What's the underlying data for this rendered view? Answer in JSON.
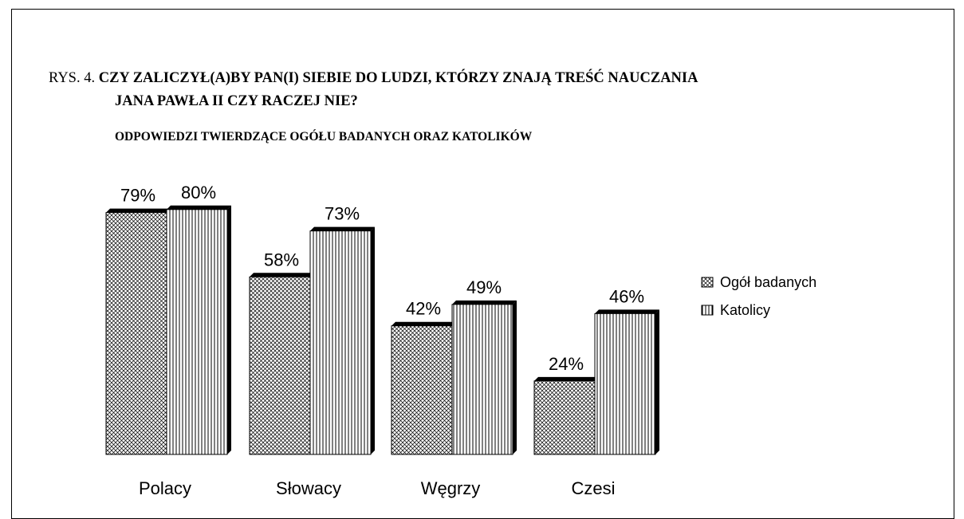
{
  "title": {
    "prefix": "RYS. 4.",
    "line1": "CZY ZALICZYŁ(A)BY PAN(I) SIEBIE DO LUDZI, KTÓRZY ZNAJĄ TREŚĆ NAUCZANIA",
    "line2": "JANA PAWŁA II CZY RACZEJ NIE?"
  },
  "subtitle": "ODPOWIEDZI TWIERDZĄCE OGÓŁU BADANYCH ORAZ KATOLIKÓW",
  "chart_data": {
    "type": "bar",
    "categories": [
      "Polacy",
      "Słowacy",
      "Węgrzy",
      "Czesi"
    ],
    "series": [
      {
        "name": "Ogół badanych",
        "values": [
          79,
          58,
          42,
          24
        ],
        "labels": [
          "79%",
          "58%",
          "42%",
          "24%"
        ],
        "pattern": "crosshatch"
      },
      {
        "name": "Katolicy",
        "values": [
          80,
          73,
          49,
          46
        ],
        "labels": [
          "80%",
          "73%",
          "49%",
          "46%"
        ],
        "pattern": "vertical-lines"
      }
    ],
    "ylim": [
      0,
      100
    ],
    "grid": false,
    "legend_position": "right",
    "colors": {
      "bar_fill": "#ffffff",
      "bar_stroke": "#000000",
      "shadow": "#000000"
    }
  }
}
